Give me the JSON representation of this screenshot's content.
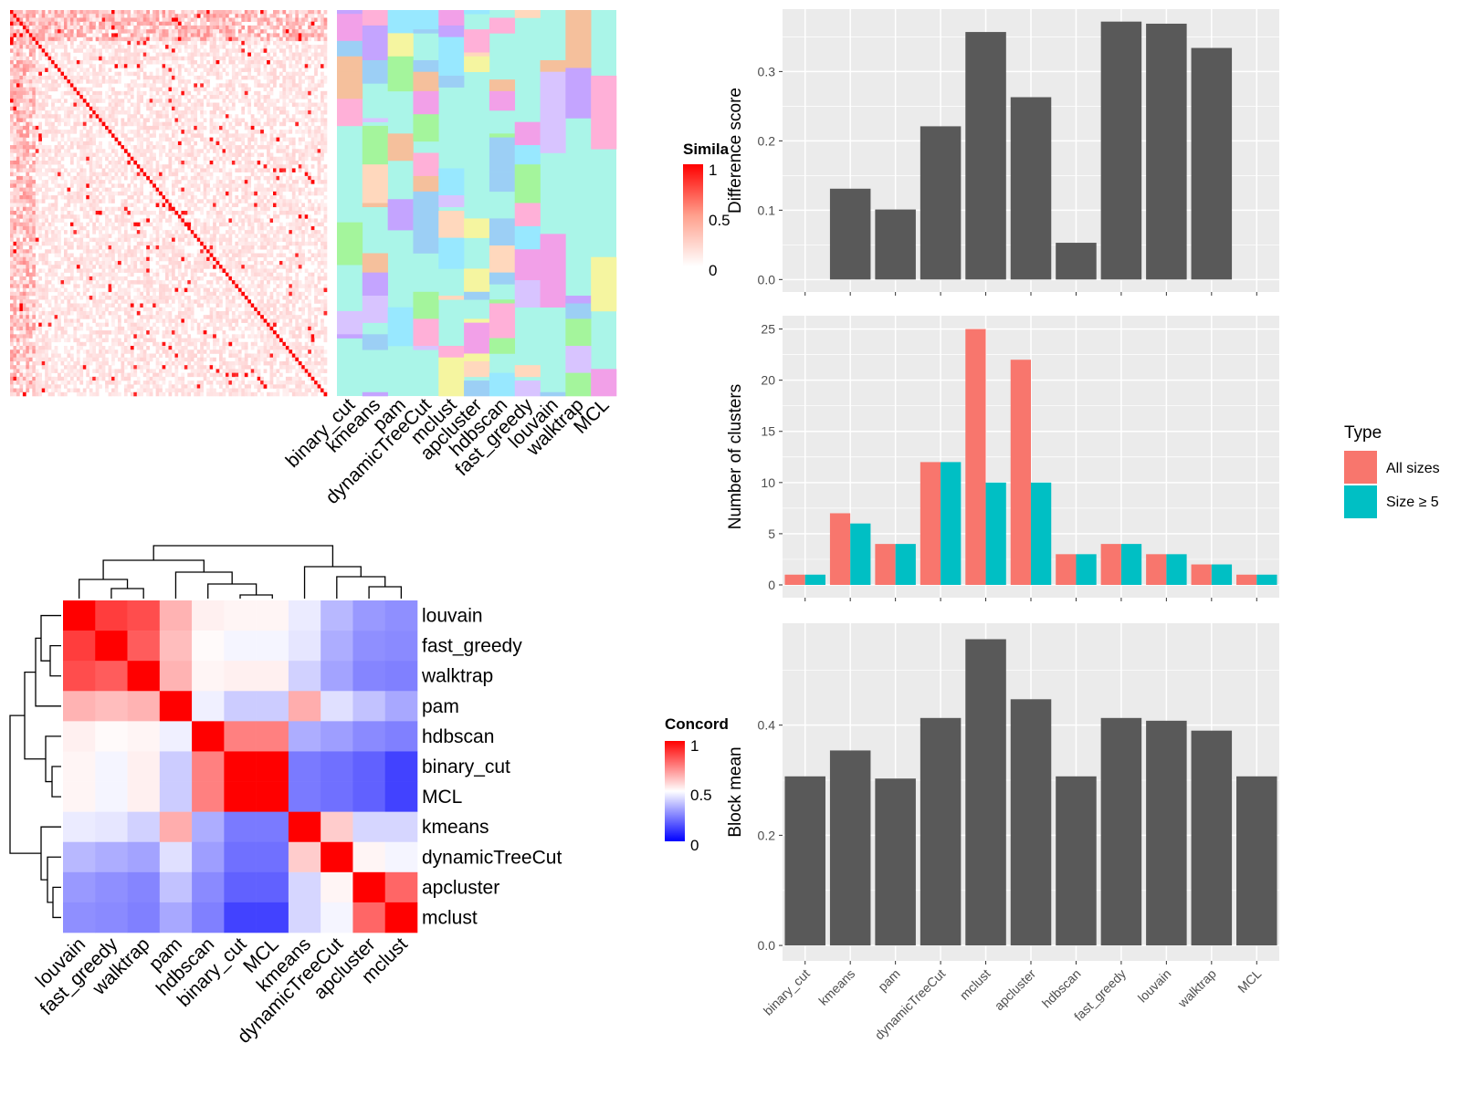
{
  "colors": {
    "panel_bg": "#ebebeb",
    "grid": "#ffffff",
    "bar": "#595959",
    "all_sizes": "#f8766d",
    "size_ge_5": "#00bfc4",
    "sim_high": "#ff0000",
    "sim_low": "#ffffff",
    "conc_high": "#ff0000",
    "conc_mid": "#ffffff",
    "conc_low": "#0000ff"
  },
  "legends": {
    "similarity": {
      "title": "Simila",
      "ticks": [
        "1",
        "0.5",
        "0"
      ]
    },
    "concordance": {
      "title": "Concord",
      "ticks": [
        "1",
        "0.5",
        "0"
      ]
    },
    "type": {
      "title": "Type",
      "items": [
        "All sizes",
        "Size ≥ 5"
      ]
    }
  },
  "chart_data": [
    {
      "type": "heatmap",
      "title": "",
      "description_rows": "~100 items, red diagonal similarity matrix",
      "legend_title": "Simila",
      "legend_ticks": [
        "1",
        "0.5",
        "0"
      ]
    },
    {
      "type": "heatmap",
      "title": "",
      "columns": [
        "binary_cut",
        "kmeans",
        "pam",
        "dynamicTreeCut",
        "mclust",
        "apcluster",
        "hdbscan",
        "fast_greedy",
        "louvain",
        "walktrap",
        "MCL"
      ]
    },
    {
      "type": "heatmap",
      "rows": [
        "louvain",
        "fast_greedy",
        "walktrap",
        "pam",
        "hdbscan",
        "binary_cut",
        "MCL",
        "kmeans",
        "dynamicTreeCut",
        "apcluster",
        "mclust"
      ],
      "columns": [
        "louvain",
        "fast_greedy",
        "walktrap",
        "pam",
        "hdbscan",
        "binary_cut",
        "MCL",
        "kmeans",
        "dynamicTreeCut",
        "apcluster",
        "mclust"
      ],
      "values": [
        [
          1.0,
          0.88,
          0.85,
          0.65,
          0.53,
          0.52,
          0.52,
          0.46,
          0.36,
          0.3,
          0.28
        ],
        [
          0.88,
          1.0,
          0.82,
          0.63,
          0.51,
          0.48,
          0.48,
          0.45,
          0.34,
          0.28,
          0.27
        ],
        [
          0.85,
          0.82,
          1.0,
          0.65,
          0.52,
          0.53,
          0.53,
          0.41,
          0.32,
          0.26,
          0.25
        ],
        [
          0.65,
          0.63,
          0.65,
          1.0,
          0.47,
          0.4,
          0.4,
          0.66,
          0.44,
          0.38,
          0.33
        ],
        [
          0.53,
          0.51,
          0.52,
          0.47,
          1.0,
          0.75,
          0.75,
          0.34,
          0.31,
          0.27,
          0.25
        ],
        [
          0.52,
          0.48,
          0.53,
          0.4,
          0.75,
          1.0,
          1.0,
          0.24,
          0.22,
          0.19,
          0.13
        ],
        [
          0.52,
          0.48,
          0.53,
          0.4,
          0.75,
          1.0,
          1.0,
          0.24,
          0.22,
          0.19,
          0.13
        ],
        [
          0.46,
          0.45,
          0.41,
          0.66,
          0.34,
          0.24,
          0.24,
          1.0,
          0.6,
          0.42,
          0.42
        ],
        [
          0.36,
          0.34,
          0.32,
          0.44,
          0.31,
          0.22,
          0.22,
          0.6,
          1.0,
          0.52,
          0.48
        ],
        [
          0.3,
          0.28,
          0.26,
          0.38,
          0.27,
          0.19,
          0.19,
          0.42,
          0.52,
          1.0,
          0.8
        ],
        [
          0.28,
          0.27,
          0.25,
          0.33,
          0.25,
          0.13,
          0.13,
          0.42,
          0.48,
          0.8,
          1.0
        ]
      ],
      "legend_title": "Concord",
      "legend_ticks": [
        "1",
        "0.5",
        "0"
      ]
    },
    {
      "type": "bar",
      "ylabel": "Difference score",
      "categories": [
        "binary_cut",
        "kmeans",
        "pam",
        "dynamicTreeCut",
        "mclust",
        "apcluster",
        "hdbscan",
        "fast_greedy",
        "louvain",
        "walktrap",
        "MCL"
      ],
      "values": [
        0,
        0.131,
        0.101,
        0.221,
        0.357,
        0.263,
        0.053,
        0.372,
        0.369,
        0.334,
        0
      ],
      "ylim": [
        -0.018,
        0.39
      ],
      "yticks": [
        "0.0",
        "0.1",
        "0.2",
        "0.3"
      ]
    },
    {
      "type": "bar",
      "ylabel": "Number of clusters",
      "categories": [
        "binary_cut",
        "kmeans",
        "pam",
        "dynamicTreeCut",
        "mclust",
        "apcluster",
        "hdbscan",
        "fast_greedy",
        "louvain",
        "walktrap",
        "MCL"
      ],
      "series": [
        {
          "name": "All sizes",
          "values": [
            1,
            7,
            4,
            12,
            25,
            22,
            3,
            4,
            3,
            2,
            1
          ]
        },
        {
          "name": "Size ≥ 5",
          "values": [
            1,
            6,
            4,
            12,
            10,
            10,
            3,
            4,
            3,
            2,
            1
          ]
        }
      ],
      "ylim": [
        -1.25,
        26.3
      ],
      "yticks": [
        "0",
        "5",
        "10",
        "15",
        "20",
        "25"
      ],
      "legend_title": "Type"
    },
    {
      "type": "bar",
      "ylabel": "Block mean",
      "categories": [
        "binary_cut",
        "kmeans",
        "pam",
        "dynamicTreeCut",
        "mclust",
        "apcluster",
        "hdbscan",
        "fast_greedy",
        "louvain",
        "walktrap",
        "MCL"
      ],
      "values": [
        0.307,
        0.354,
        0.303,
        0.413,
        0.556,
        0.447,
        0.307,
        0.413,
        0.408,
        0.39,
        0.307
      ],
      "ylim": [
        -0.028,
        0.585
      ],
      "yticks": [
        "0.0",
        "0.2",
        "0.4"
      ]
    }
  ]
}
